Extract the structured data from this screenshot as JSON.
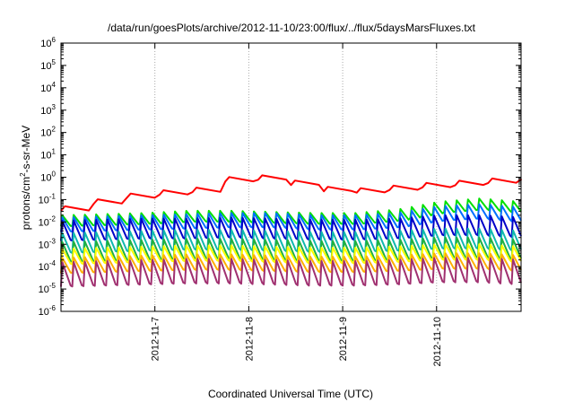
{
  "chart_data": {
    "type": "line",
    "title": "/data/run/goesPlots/archive/2012-11-10/23:00/flux/../flux/5daysMarsFluxes.txt",
    "xlabel": "Coordinated Universal Time (UTC)",
    "ylabel": {
      "base": "protons/cm",
      "sup": "2",
      "rest": "-s-sr-MeV"
    },
    "yscale": "log",
    "ylim_exp": [
      -6,
      6
    ],
    "xlim_days": [
      -1.0,
      3.9
    ],
    "x_ticks": [
      {
        "pos": 0,
        "label": "2012-11-7"
      },
      {
        "pos": 1,
        "label": "2012-11-8"
      },
      {
        "pos": 2,
        "label": "2012-11-9"
      },
      {
        "pos": 3,
        "label": "2012-11-10"
      }
    ],
    "grid": "dotted",
    "legend": "none",
    "series": [
      {
        "color": "#ff0000",
        "peak": [
          -1.3,
          -0.9,
          -0.6,
          -0.55,
          0.05,
          0.1,
          -0.4,
          -0.5,
          -0.35,
          -0.2,
          -0.1,
          0.1
        ],
        "depth": 0.2,
        "period": 0.35
      },
      {
        "color": "#00e000",
        "peak": [
          -1.7,
          -1.65,
          -1.6,
          -1.5,
          -1.5,
          -1.55,
          -1.6,
          -1.6,
          -1.45,
          -1.1,
          -0.95,
          -1.1
        ],
        "depth": 0.5,
        "period": 0.12
      },
      {
        "color": "#0070ff",
        "peak": [
          -1.8,
          -1.75,
          -1.7,
          -1.65,
          -1.6,
          -1.6,
          -1.7,
          -1.7,
          -1.6,
          -1.3,
          -1.2,
          -1.35
        ],
        "depth": 0.65,
        "period": 0.12
      },
      {
        "color": "#0000c8",
        "peak": [
          -1.95,
          -1.9,
          -1.85,
          -1.85,
          -1.8,
          -1.85,
          -1.9,
          -1.9,
          -1.85,
          -1.7,
          -1.7,
          -1.8
        ],
        "depth": 0.9,
        "period": 0.12
      },
      {
        "color": "#10b8b0",
        "peak": [
          -2.5,
          -2.45,
          -2.4,
          -2.35,
          -2.35,
          -2.4,
          -2.45,
          -2.45,
          -2.4,
          -2.3,
          -2.3,
          -2.4
        ],
        "depth": 0.9,
        "period": 0.12
      },
      {
        "color": "#20b040",
        "peak": [
          -2.9,
          -2.85,
          -2.8,
          -2.75,
          -2.75,
          -2.8,
          -2.85,
          -2.85,
          -2.8,
          -2.7,
          -2.7,
          -2.8
        ],
        "depth": 0.9,
        "period": 0.12
      },
      {
        "color": "#ffff00",
        "peak": [
          -3.2,
          -3.15,
          -3.1,
          -3.05,
          -3.05,
          -3.1,
          -3.15,
          -3.15,
          -3.1,
          -3.0,
          -3.0,
          -3.1
        ],
        "depth": 0.7,
        "period": 0.12
      },
      {
        "color": "#ffb000",
        "peak": [
          -3.6,
          -3.55,
          -3.5,
          -3.45,
          -3.45,
          -3.5,
          -3.55,
          -3.55,
          -3.5,
          -3.4,
          -3.4,
          -3.5
        ],
        "depth": 0.7,
        "period": 0.12
      },
      {
        "color": "#a03070",
        "peak": [
          -3.8,
          -3.75,
          -3.7,
          -3.65,
          -3.65,
          -3.7,
          -3.75,
          -3.75,
          -3.7,
          -3.6,
          -3.6,
          -3.7
        ],
        "depth": 1.1,
        "period": 0.12
      }
    ]
  }
}
